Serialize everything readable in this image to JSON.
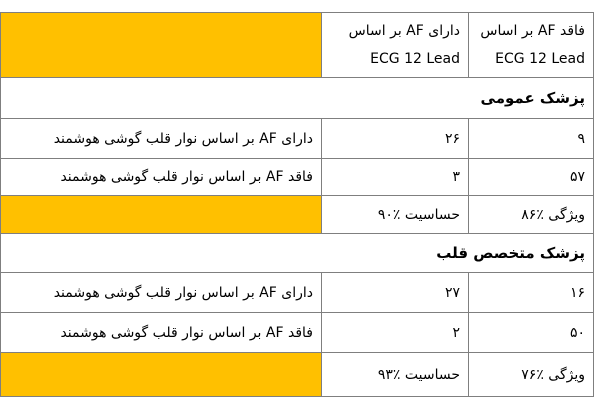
{
  "header": {
    "col_without_af": "فاقد AF بر اساس ECG 12 Lead",
    "col_with_af": "دارای AF بر اساس ECG 12 Lead"
  },
  "sections": [
    {
      "title": "پزشک عمومی",
      "rows": [
        {
          "label": "دارای AF بر اساس نوار قلب گوشی هوشمند",
          "with_af": "۲۶",
          "without_af": "۹"
        },
        {
          "label": "فاقد AF بر اساس نوار قلب گوشی هوشمند",
          "with_af": "۳",
          "without_af": "۵۷"
        }
      ],
      "sensitivity": "حساسیت ٪۹۰",
      "specificity": "ویژگی ٪۸۶"
    },
    {
      "title": "پزشک متخصص قلب",
      "rows": [
        {
          "label": "دارای AF بر اساس نوار قلب گوشی هوشمند",
          "with_af": "۲۷",
          "without_af": "۱۶"
        },
        {
          "label": "فاقد AF بر اساس نوار قلب گوشی هوشمند",
          "with_af": "۲",
          "without_af": "۵۰"
        }
      ],
      "sensitivity": "حساسیت ٪۹۳",
      "specificity": "ویژگی ٪۷۶"
    }
  ],
  "colors": {
    "highlight": "#ffc000",
    "border": "#7f7f7f"
  }
}
